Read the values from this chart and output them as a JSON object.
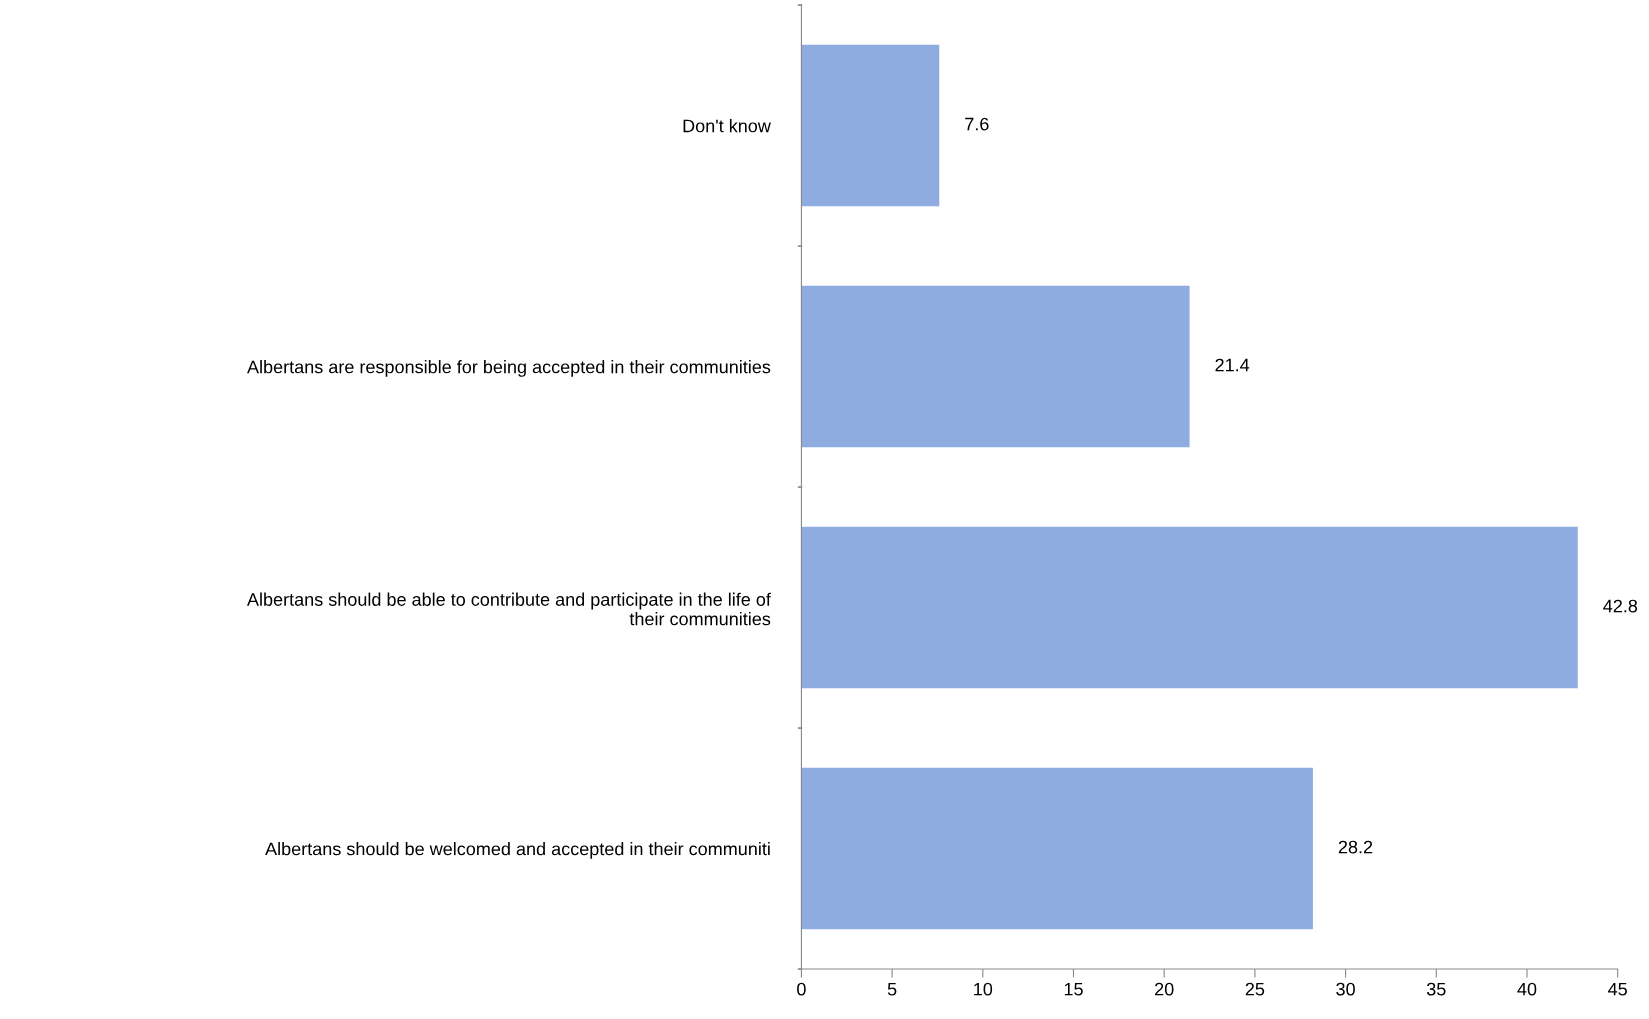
{
  "chart_data": {
    "type": "bar",
    "orientation": "horizontal",
    "categories": [
      "Don't know",
      "Albertans are responsible for being accepted in their communities",
      "Albertans should be able to contribute and participate in the life of\ntheir communities",
      "Albertans should be welcomed and accepted in their communiti"
    ],
    "values": [
      7.6,
      21.4,
      42.8,
      28.2
    ],
    "color": "#8eace0",
    "data_labels": true,
    "xlim": [
      0,
      45
    ],
    "xticks": [
      0,
      5,
      10,
      15,
      20,
      25,
      30,
      35,
      40,
      45
    ],
    "grid": false,
    "legend": false
  }
}
